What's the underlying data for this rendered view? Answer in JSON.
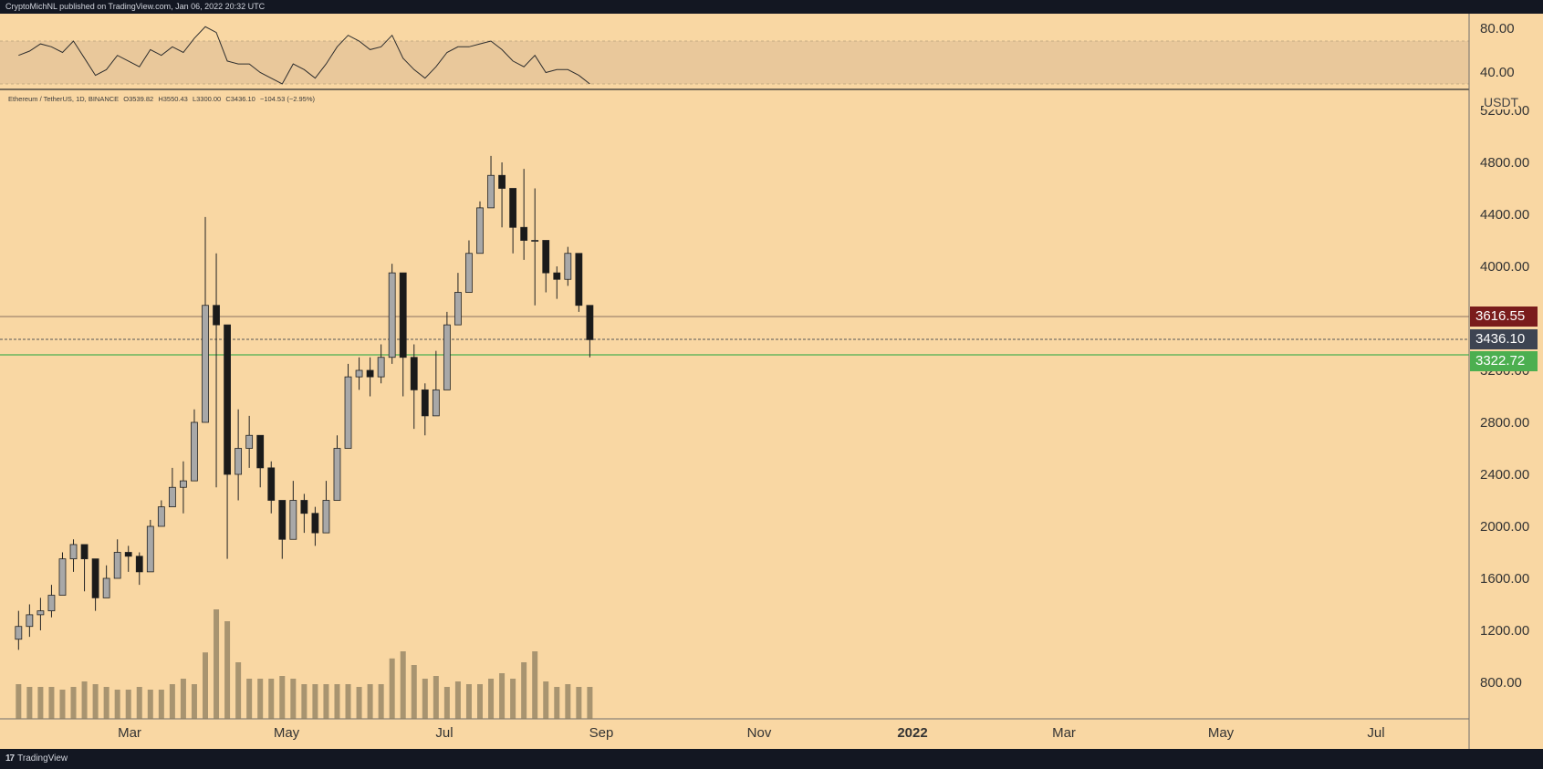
{
  "header": {
    "publish_line": "CryptoMichNL published on TradingView.com, Jan 06, 2022 20:32 UTC"
  },
  "footer": {
    "brand": "TradingView",
    "logo_glyph": "17"
  },
  "legend": {
    "symbol": "Ethereum / TetherUS, 1D, BINANCE",
    "open": "O3539.82",
    "high": "H3550.43",
    "low": "L3300.00",
    "close": "C3436.10",
    "change": "−104.53 (−2.95%)"
  },
  "price_axis": {
    "unit": "USDT",
    "ticks": [
      "5200.00",
      "4800.00",
      "4400.00",
      "4000.00",
      "3600.00",
      "3200.00",
      "2800.00",
      "2400.00",
      "2000.00",
      "1600.00",
      "1200.00",
      "800.00"
    ]
  },
  "rsi_axis": {
    "ticks": [
      "80.00",
      "40.00"
    ]
  },
  "time_axis": {
    "ticks": [
      "Mar",
      "May",
      "Jul",
      "Sep",
      "Nov",
      "2022",
      "Mar",
      "May",
      "Jul"
    ]
  },
  "price_labels": [
    {
      "value": "3616.55",
      "color": "#7a1c1c"
    },
    {
      "value": "3436.10",
      "color": "#3d4452"
    },
    {
      "value": "3322.72",
      "color": "#4caf50"
    }
  ],
  "colors": {
    "background": "#f9d7a3",
    "candle_up": "#a8a8a8",
    "candle_down": "#1a1a1a",
    "volume": "#8c7d5f",
    "rsi_band": "#e9c89b",
    "support_line": "#4caf50",
    "resistance_line": "#8a7060"
  },
  "chart_data": [
    {
      "type": "candlestick",
      "title": "Ethereum / TetherUS, 1D, BINANCE",
      "ylabel": "USDT",
      "ylim": [
        500,
        5300
      ],
      "x": [
        "2021-01-07",
        "2021-01-14",
        "2021-01-21",
        "2021-01-28",
        "2021-02-04",
        "2021-02-11",
        "2021-02-18",
        "2021-02-25",
        "2021-03-04",
        "2021-03-11",
        "2021-03-18",
        "2021-03-25",
        "2021-04-01",
        "2021-04-08",
        "2021-04-15",
        "2021-04-22",
        "2021-04-29",
        "2021-05-06",
        "2021-05-13",
        "2021-05-20",
        "2021-05-27",
        "2021-06-03",
        "2021-06-10",
        "2021-06-17",
        "2021-06-24",
        "2021-07-01",
        "2021-07-08",
        "2021-07-15",
        "2021-07-22",
        "2021-07-29",
        "2021-08-05",
        "2021-08-12",
        "2021-08-19",
        "2021-08-26",
        "2021-09-02",
        "2021-09-09",
        "2021-09-16",
        "2021-09-23",
        "2021-09-30",
        "2021-10-07",
        "2021-10-14",
        "2021-10-21",
        "2021-10-28",
        "2021-11-04",
        "2021-11-11",
        "2021-11-18",
        "2021-11-25",
        "2021-12-02",
        "2021-12-09",
        "2021-12-16",
        "2021-12-23",
        "2021-12-30",
        "2022-01-06"
      ],
      "close": [
        1230,
        1320,
        1350,
        1470,
        1750,
        1860,
        1750,
        1450,
        1600,
        1800,
        1770,
        1650,
        2000,
        2150,
        2300,
        2350,
        2800,
        3700,
        3550,
        2400,
        2600,
        2700,
        2450,
        2200,
        1900,
        2200,
        2100,
        1950,
        2200,
        2600,
        3150,
        3200,
        3150,
        3300,
        3950,
        3300,
        3050,
        2850,
        3050,
        3550,
        3800,
        4100,
        4450,
        4700,
        4600,
        4300,
        4200,
        4200,
        3950,
        3900,
        4100,
        3700,
        3436
      ],
      "high": [
        1350,
        1400,
        1450,
        1550,
        1800,
        1900,
        1850,
        1650,
        1700,
        1900,
        1850,
        1800,
        2050,
        2200,
        2450,
        2500,
        2900,
        4380,
        4100,
        3200,
        2900,
        2850,
        2700,
        2500,
        2200,
        2350,
        2250,
        2150,
        2350,
        2700,
        3250,
        3300,
        3300,
        3400,
        4020,
        3900,
        3400,
        3100,
        3350,
        3650,
        3950,
        4200,
        4500,
        4850,
        4800,
        4500,
        4750,
        4600,
        4150,
        4000,
        4150,
        3900,
        3550
      ],
      "low": [
        1050,
        1150,
        1200,
        1300,
        1600,
        1650,
        1500,
        1350,
        1450,
        1700,
        1650,
        1550,
        1850,
        2000,
        2150,
        2100,
        2600,
        3500,
        2300,
        1750,
        2200,
        2450,
        2300,
        2100,
        1750,
        1950,
        1950,
        1850,
        2050,
        2400,
        2950,
        3050,
        3000,
        3100,
        3250,
        3000,
        2750,
        2700,
        2900,
        3400,
        3600,
        3900,
        4200,
        4450,
        4300,
        4100,
        4050,
        3700,
        3800,
        3750,
        3850,
        3650,
        3300
      ]
    },
    {
      "type": "line",
      "title": "RSI",
      "ylim": [
        30,
        90
      ],
      "y": [
        60,
        63,
        68,
        66,
        62,
        70,
        58,
        46,
        50,
        60,
        56,
        52,
        64,
        60,
        66,
        62,
        72,
        80,
        76,
        56,
        54,
        54,
        48,
        44,
        40,
        54,
        50,
        44,
        54,
        66,
        74,
        70,
        64,
        66,
        74,
        58,
        50,
        44,
        52,
        62,
        66,
        66,
        68,
        70,
        64,
        56,
        52,
        60,
        48,
        50,
        50,
        46,
        40
      ]
    }
  ]
}
